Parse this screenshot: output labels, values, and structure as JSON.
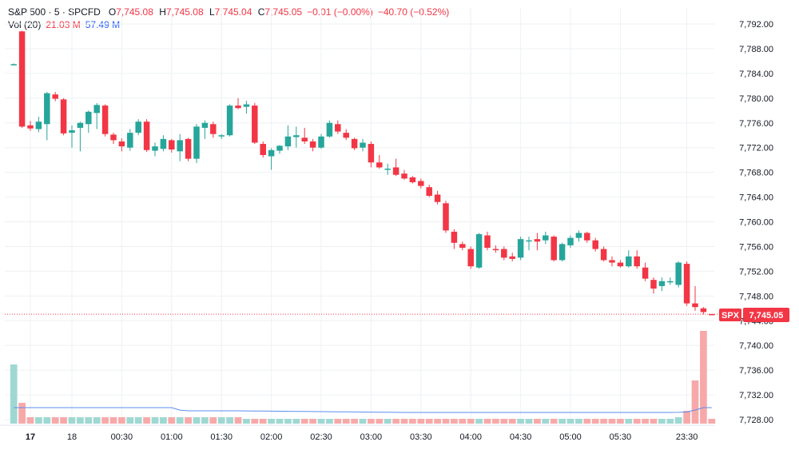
{
  "legend": {
    "symbol": "S&P 500 · 5 · SPCFD",
    "o_label": "O",
    "o_value": "7,745.08",
    "h_label": "H",
    "h_value": "7,745.08",
    "l_label": "L",
    "l_value": "7,745.04",
    "c_label": "C",
    "c_value": "7,745.05",
    "change": "−0.01 (−0.00%)",
    "change_day": "−40.70 (−0.52%)",
    "vol_label": "Vol (20)",
    "vol_value": "21.03 M",
    "vol_ma_value": "57.49 M"
  },
  "price_tag": {
    "symbol": "SPX",
    "value": "7,745.05"
  },
  "colors": {
    "up": "#26a69a",
    "down": "#f23645",
    "vol_up": "#9fd8d2",
    "vol_down": "#f7a9a9",
    "vol_ma": "#5b8def",
    "grid": "#eef0f3"
  },
  "chart_data": {
    "type": "candlestick",
    "y_ticks": [
      "7,792.00",
      "7,788.00",
      "7,784.00",
      "7,780.00",
      "7,776.00",
      "7,772.00",
      "7,768.00",
      "7,764.00",
      "7,760.00",
      "7,756.00",
      "7,752.00",
      "7,748.00",
      "7,744.00",
      "7,740.00",
      "7,736.00",
      "7,732.00",
      "7,728.00"
    ],
    "ylim": [
      7726.5,
      7793.5
    ],
    "x_ticks": [
      {
        "label": "17",
        "bold": true,
        "i": 2
      },
      {
        "label": "18",
        "i": 7
      },
      {
        "label": "00:30",
        "i": 13
      },
      {
        "label": "01:00",
        "i": 19
      },
      {
        "label": "01:30",
        "i": 25
      },
      {
        "label": "02:00",
        "i": 31
      },
      {
        "label": "02:30",
        "i": 37
      },
      {
        "label": "03:00",
        "i": 43
      },
      {
        "label": "03:30",
        "i": 49
      },
      {
        "label": "04:00",
        "i": 55
      },
      {
        "label": "04:30",
        "i": 61
      },
      {
        "label": "05:00",
        "i": 67
      },
      {
        "label": "05:30",
        "i": 73
      },
      {
        "label": "23:30",
        "i": 81
      }
    ],
    "last_price": 7745.05,
    "candles": [
      {
        "o": 7785.5,
        "h": 7785.6,
        "l": 7785.4,
        "c": 7785.5,
        "v": 37
      },
      {
        "o": 7790.8,
        "h": 7790.9,
        "l": 7775.2,
        "c": 7775.4,
        "v": 13
      },
      {
        "o": 7775.6,
        "h": 7776.3,
        "l": 7774.7,
        "c": 7775.1,
        "v": 4
      },
      {
        "o": 7775.0,
        "h": 7777.0,
        "l": 7774.5,
        "c": 7776.2,
        "v": 4
      },
      {
        "o": 7775.8,
        "h": 7781.0,
        "l": 7773.2,
        "c": 7780.8,
        "v": 4
      },
      {
        "o": 7780.6,
        "h": 7781.0,
        "l": 7779.5,
        "c": 7779.9,
        "v": 4
      },
      {
        "o": 7779.8,
        "h": 7780.0,
        "l": 7774.0,
        "c": 7774.3,
        "v": 4
      },
      {
        "o": 7774.4,
        "h": 7775.6,
        "l": 7772.0,
        "c": 7774.8,
        "v": 4
      },
      {
        "o": 7775.2,
        "h": 7776.2,
        "l": 7771.4,
        "c": 7776.0,
        "v": 4
      },
      {
        "o": 7775.8,
        "h": 7778.0,
        "l": 7774.4,
        "c": 7777.8,
        "v": 4
      },
      {
        "o": 7777.6,
        "h": 7779.2,
        "l": 7775.0,
        "c": 7778.9,
        "v": 4
      },
      {
        "o": 7778.8,
        "h": 7779.0,
        "l": 7773.8,
        "c": 7774.2,
        "v": 4
      },
      {
        "o": 7774.1,
        "h": 7774.4,
        "l": 7772.6,
        "c": 7773.2,
        "v": 4
      },
      {
        "o": 7773.0,
        "h": 7773.5,
        "l": 7771.4,
        "c": 7772.2,
        "v": 4
      },
      {
        "o": 7772.0,
        "h": 7775.0,
        "l": 7771.5,
        "c": 7774.4,
        "v": 4
      },
      {
        "o": 7774.4,
        "h": 7776.6,
        "l": 7774.0,
        "c": 7776.2,
        "v": 4
      },
      {
        "o": 7776.2,
        "h": 7776.6,
        "l": 7771.3,
        "c": 7771.6,
        "v": 4
      },
      {
        "o": 7771.5,
        "h": 7772.8,
        "l": 7770.6,
        "c": 7772.2,
        "v": 4
      },
      {
        "o": 7771.8,
        "h": 7774.0,
        "l": 7771.4,
        "c": 7773.4,
        "v": 4
      },
      {
        "o": 7773.2,
        "h": 7773.4,
        "l": 7771.2,
        "c": 7771.7,
        "v": 4
      },
      {
        "o": 7771.4,
        "h": 7774.2,
        "l": 7769.8,
        "c": 7773.2,
        "v": 4
      },
      {
        "o": 7773.4,
        "h": 7773.6,
        "l": 7769.8,
        "c": 7770.2,
        "v": 4
      },
      {
        "o": 7770.2,
        "h": 7775.8,
        "l": 7769.5,
        "c": 7775.4,
        "v": 4
      },
      {
        "o": 7775.2,
        "h": 7776.4,
        "l": 7773.4,
        "c": 7776.0,
        "v": 4
      },
      {
        "o": 7775.8,
        "h": 7776.2,
        "l": 7773.6,
        "c": 7774.2,
        "v": 4
      },
      {
        "o": 7774.0,
        "h": 7774.2,
        "l": 7773.4,
        "c": 7774.0,
        "v": 4
      },
      {
        "o": 7774.0,
        "h": 7779.0,
        "l": 7773.8,
        "c": 7778.8,
        "v": 4
      },
      {
        "o": 7778.8,
        "h": 7780.0,
        "l": 7778.2,
        "c": 7778.4,
        "v": 4
      },
      {
        "o": 7778.6,
        "h": 7779.6,
        "l": 7777.5,
        "c": 7779.0,
        "v": 3
      },
      {
        "o": 7778.8,
        "h": 7779.2,
        "l": 7772.6,
        "c": 7772.8,
        "v": 3
      },
      {
        "o": 7772.6,
        "h": 7773.0,
        "l": 7770.4,
        "c": 7770.8,
        "v": 3
      },
      {
        "o": 7770.6,
        "h": 7771.9,
        "l": 7768.4,
        "c": 7771.6,
        "v": 3
      },
      {
        "o": 7771.5,
        "h": 7772.4,
        "l": 7771.0,
        "c": 7772.3,
        "v": 3
      },
      {
        "o": 7772.2,
        "h": 7775.6,
        "l": 7771.6,
        "c": 7773.8,
        "v": 3
      },
      {
        "o": 7773.7,
        "h": 7775.4,
        "l": 7772.0,
        "c": 7774.0,
        "v": 3
      },
      {
        "o": 7773.6,
        "h": 7775.2,
        "l": 7772.6,
        "c": 7773.0,
        "v": 3
      },
      {
        "o": 7773.0,
        "h": 7773.4,
        "l": 7771.4,
        "c": 7772.0,
        "v": 3
      },
      {
        "o": 7772.0,
        "h": 7774.2,
        "l": 7771.8,
        "c": 7773.8,
        "v": 3
      },
      {
        "o": 7773.8,
        "h": 7776.4,
        "l": 7773.6,
        "c": 7776.0,
        "v": 3
      },
      {
        "o": 7775.8,
        "h": 7776.4,
        "l": 7774.2,
        "c": 7774.6,
        "v": 3
      },
      {
        "o": 7774.4,
        "h": 7775.0,
        "l": 7773.2,
        "c": 7773.6,
        "v": 3
      },
      {
        "o": 7773.4,
        "h": 7773.6,
        "l": 7771.6,
        "c": 7771.9,
        "v": 3
      },
      {
        "o": 7772.0,
        "h": 7773.4,
        "l": 7771.4,
        "c": 7772.8,
        "v": 3
      },
      {
        "o": 7772.6,
        "h": 7773.0,
        "l": 7768.8,
        "c": 7769.6,
        "v": 3
      },
      {
        "o": 7769.6,
        "h": 7770.8,
        "l": 7768.6,
        "c": 7768.8,
        "v": 3
      },
      {
        "o": 7768.6,
        "h": 7769.4,
        "l": 7767.6,
        "c": 7768.6,
        "v": 3
      },
      {
        "o": 7768.8,
        "h": 7770.2,
        "l": 7767.4,
        "c": 7767.6,
        "v": 3
      },
      {
        "o": 7767.8,
        "h": 7768.4,
        "l": 7766.8,
        "c": 7767.0,
        "v": 3
      },
      {
        "o": 7767.2,
        "h": 7767.4,
        "l": 7766.2,
        "c": 7766.4,
        "v": 3
      },
      {
        "o": 7766.6,
        "h": 7767.0,
        "l": 7765.4,
        "c": 7765.8,
        "v": 3
      },
      {
        "o": 7765.6,
        "h": 7766.0,
        "l": 7764.0,
        "c": 7764.2,
        "v": 3
      },
      {
        "o": 7764.4,
        "h": 7765.0,
        "l": 7762.8,
        "c": 7763.2,
        "v": 3
      },
      {
        "o": 7763.0,
        "h": 7763.4,
        "l": 7758.2,
        "c": 7758.6,
        "v": 3
      },
      {
        "o": 7758.4,
        "h": 7758.8,
        "l": 7755.6,
        "c": 7756.6,
        "v": 3
      },
      {
        "o": 7756.4,
        "h": 7756.8,
        "l": 7755.4,
        "c": 7755.8,
        "v": 3
      },
      {
        "o": 7755.6,
        "h": 7756.0,
        "l": 7752.4,
        "c": 7752.8,
        "v": 3
      },
      {
        "o": 7752.6,
        "h": 7758.2,
        "l": 7752.4,
        "c": 7758.0,
        "v": 3
      },
      {
        "o": 7757.8,
        "h": 7758.4,
        "l": 7755.4,
        "c": 7755.8,
        "v": 3
      },
      {
        "o": 7755.6,
        "h": 7756.2,
        "l": 7755.0,
        "c": 7755.4,
        "v": 3
      },
      {
        "o": 7755.6,
        "h": 7756.0,
        "l": 7753.8,
        "c": 7754.2,
        "v": 3
      },
      {
        "o": 7754.4,
        "h": 7755.0,
        "l": 7753.6,
        "c": 7754.0,
        "v": 3
      },
      {
        "o": 7754.2,
        "h": 7757.6,
        "l": 7753.8,
        "c": 7757.2,
        "v": 3
      },
      {
        "o": 7757.0,
        "h": 7757.6,
        "l": 7755.4,
        "c": 7757.0,
        "v": 3
      },
      {
        "o": 7757.2,
        "h": 7758.2,
        "l": 7755.4,
        "c": 7756.8,
        "v": 3
      },
      {
        "o": 7757.0,
        "h": 7758.4,
        "l": 7756.4,
        "c": 7757.8,
        "v": 3
      },
      {
        "o": 7757.6,
        "h": 7757.8,
        "l": 7753.6,
        "c": 7753.8,
        "v": 3
      },
      {
        "o": 7753.8,
        "h": 7756.6,
        "l": 7753.6,
        "c": 7756.4,
        "v": 3
      },
      {
        "o": 7756.2,
        "h": 7757.8,
        "l": 7755.8,
        "c": 7757.4,
        "v": 3
      },
      {
        "o": 7757.4,
        "h": 7758.6,
        "l": 7756.8,
        "c": 7758.2,
        "v": 3
      },
      {
        "o": 7758.2,
        "h": 7758.4,
        "l": 7756.6,
        "c": 7757.0,
        "v": 3
      },
      {
        "o": 7757.0,
        "h": 7757.4,
        "l": 7755.2,
        "c": 7755.6,
        "v": 3
      },
      {
        "o": 7755.6,
        "h": 7756.0,
        "l": 7753.6,
        "c": 7753.8,
        "v": 3
      },
      {
        "o": 7753.8,
        "h": 7754.4,
        "l": 7752.8,
        "c": 7753.4,
        "v": 3
      },
      {
        "o": 7753.4,
        "h": 7753.8,
        "l": 7752.6,
        "c": 7752.8,
        "v": 3
      },
      {
        "o": 7752.8,
        "h": 7755.4,
        "l": 7752.6,
        "c": 7754.4,
        "v": 3
      },
      {
        "o": 7754.4,
        "h": 7755.4,
        "l": 7752.4,
        "c": 7752.8,
        "v": 3
      },
      {
        "o": 7752.6,
        "h": 7753.4,
        "l": 7750.4,
        "c": 7750.8,
        "v": 3
      },
      {
        "o": 7750.6,
        "h": 7751.0,
        "l": 7748.4,
        "c": 7749.2,
        "v": 3
      },
      {
        "o": 7749.6,
        "h": 7751.0,
        "l": 7748.8,
        "c": 7750.4,
        "v": 3
      },
      {
        "o": 7750.2,
        "h": 7751.0,
        "l": 7749.8,
        "c": 7750.4,
        "v": 3
      },
      {
        "o": 7749.8,
        "h": 7753.6,
        "l": 7749.4,
        "c": 7753.4,
        "v": 4
      },
      {
        "o": 7753.2,
        "h": 7753.6,
        "l": 7746.4,
        "c": 7746.8,
        "v": 8
      },
      {
        "o": 7746.8,
        "h": 7749.6,
        "l": 7745.6,
        "c": 7746.2,
        "v": 27
      },
      {
        "o": 7746.0,
        "h": 7746.2,
        "l": 7745.0,
        "c": 7745.4,
        "v": 58
      },
      {
        "o": 7745.08,
        "h": 7745.08,
        "l": 7745.04,
        "c": 7745.05,
        "v": 3
      }
    ]
  }
}
